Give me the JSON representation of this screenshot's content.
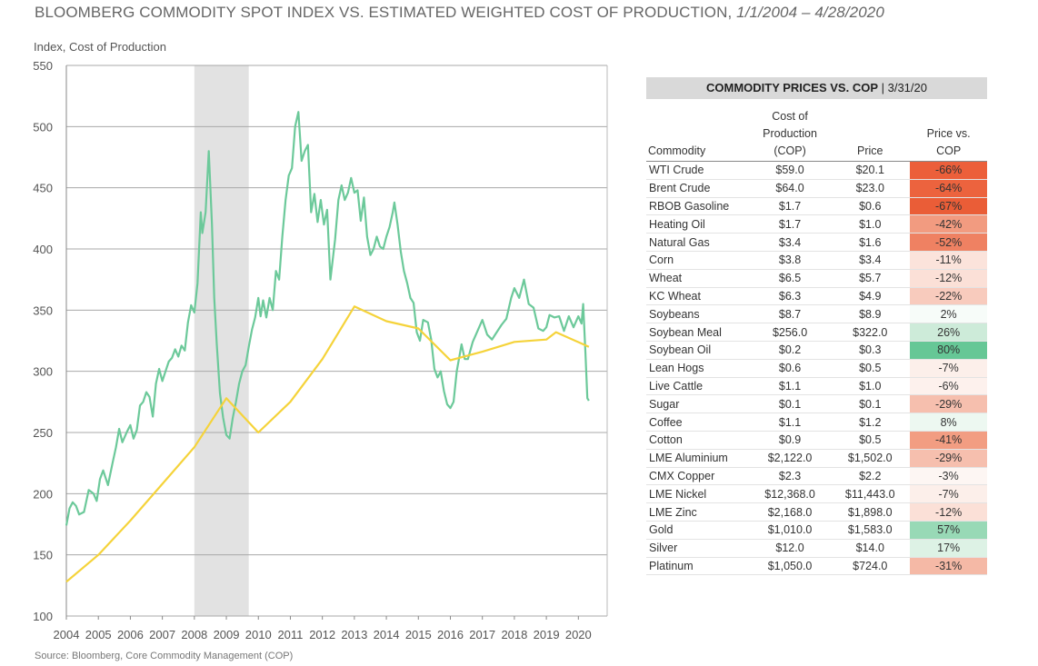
{
  "title": "BLOOMBERG COMMODITY SPOT INDEX VS. ESTIMATED WEIGHTED COST OF PRODUCTION,",
  "title_dates": "1/1/2004 – 4/28/2020",
  "source": "Source: Bloomberg, Core Commodity Management (COP)",
  "chart_data": {
    "type": "line",
    "ylabel": "Index, Cost of Production",
    "ylim": [
      100,
      550
    ],
    "xlim": [
      2004,
      2020.9
    ],
    "yticks": [
      100,
      150,
      200,
      250,
      300,
      350,
      400,
      450,
      500,
      550
    ],
    "xticks": [
      "2004",
      "2005",
      "2006",
      "2007",
      "2008",
      "2009",
      "2010",
      "2011",
      "2012",
      "2013",
      "2014",
      "2015",
      "2016",
      "2017",
      "2018",
      "2019",
      "2020"
    ],
    "grid": "horizontal",
    "shaded_region": [
      2008.0,
      2009.7
    ],
    "series": [
      {
        "color": "#6cc99a",
        "points": [
          [
            2004.0,
            174
          ],
          [
            2004.1,
            188
          ],
          [
            2004.2,
            193
          ],
          [
            2004.3,
            190
          ],
          [
            2004.4,
            183
          ],
          [
            2004.55,
            185
          ],
          [
            2004.7,
            203
          ],
          [
            2004.85,
            200
          ],
          [
            2004.95,
            194
          ],
          [
            2005.05,
            212
          ],
          [
            2005.15,
            219
          ],
          [
            2005.3,
            207
          ],
          [
            2005.45,
            226
          ],
          [
            2005.55,
            238
          ],
          [
            2005.65,
            253
          ],
          [
            2005.75,
            242
          ],
          [
            2005.9,
            251
          ],
          [
            2006.0,
            256
          ],
          [
            2006.1,
            245
          ],
          [
            2006.2,
            252
          ],
          [
            2006.3,
            272
          ],
          [
            2006.4,
            275
          ],
          [
            2006.5,
            283
          ],
          [
            2006.6,
            279
          ],
          [
            2006.7,
            263
          ],
          [
            2006.8,
            290
          ],
          [
            2006.9,
            302
          ],
          [
            2007.0,
            292
          ],
          [
            2007.1,
            300
          ],
          [
            2007.2,
            308
          ],
          [
            2007.3,
            311
          ],
          [
            2007.4,
            318
          ],
          [
            2007.5,
            312
          ],
          [
            2007.6,
            321
          ],
          [
            2007.7,
            317
          ],
          [
            2007.8,
            340
          ],
          [
            2007.9,
            354
          ],
          [
            2008.0,
            348
          ],
          [
            2008.1,
            372
          ],
          [
            2008.2,
            430
          ],
          [
            2008.25,
            413
          ],
          [
            2008.35,
            430
          ],
          [
            2008.45,
            480
          ],
          [
            2008.55,
            420
          ],
          [
            2008.62,
            360
          ],
          [
            2008.7,
            322
          ],
          [
            2008.8,
            282
          ],
          [
            2008.9,
            262
          ],
          [
            2009.0,
            248
          ],
          [
            2009.1,
            245
          ],
          [
            2009.2,
            262
          ],
          [
            2009.3,
            275
          ],
          [
            2009.4,
            290
          ],
          [
            2009.5,
            300
          ],
          [
            2009.6,
            305
          ],
          [
            2009.7,
            320
          ],
          [
            2009.8,
            334
          ],
          [
            2009.9,
            344
          ],
          [
            2010.0,
            360
          ],
          [
            2010.07,
            345
          ],
          [
            2010.15,
            358
          ],
          [
            2010.25,
            344
          ],
          [
            2010.35,
            360
          ],
          [
            2010.45,
            350
          ],
          [
            2010.55,
            382
          ],
          [
            2010.65,
            375
          ],
          [
            2010.75,
            410
          ],
          [
            2010.85,
            440
          ],
          [
            2010.95,
            460
          ],
          [
            2011.05,
            466
          ],
          [
            2011.15,
            500
          ],
          [
            2011.25,
            512
          ],
          [
            2011.35,
            472
          ],
          [
            2011.45,
            480
          ],
          [
            2011.55,
            485
          ],
          [
            2011.65,
            430
          ],
          [
            2011.75,
            445
          ],
          [
            2011.85,
            422
          ],
          [
            2011.95,
            440
          ],
          [
            2012.05,
            420
          ],
          [
            2012.15,
            432
          ],
          [
            2012.25,
            375
          ],
          [
            2012.4,
            408
          ],
          [
            2012.5,
            440
          ],
          [
            2012.6,
            452
          ],
          [
            2012.7,
            440
          ],
          [
            2012.8,
            446
          ],
          [
            2012.9,
            458
          ],
          [
            2013.0,
            446
          ],
          [
            2013.1,
            448
          ],
          [
            2013.2,
            423
          ],
          [
            2013.3,
            442
          ],
          [
            2013.4,
            410
          ],
          [
            2013.5,
            395
          ],
          [
            2013.6,
            400
          ],
          [
            2013.7,
            410
          ],
          [
            2013.8,
            402
          ],
          [
            2013.9,
            400
          ],
          [
            2014.0,
            410
          ],
          [
            2014.1,
            418
          ],
          [
            2014.2,
            430
          ],
          [
            2014.25,
            438
          ],
          [
            2014.35,
            420
          ],
          [
            2014.45,
            398
          ],
          [
            2014.55,
            382
          ],
          [
            2014.65,
            372
          ],
          [
            2014.75,
            360
          ],
          [
            2014.85,
            356
          ],
          [
            2014.95,
            332
          ],
          [
            2015.05,
            325
          ],
          [
            2015.15,
            342
          ],
          [
            2015.3,
            340
          ],
          [
            2015.4,
            326
          ],
          [
            2015.5,
            302
          ],
          [
            2015.6,
            295
          ],
          [
            2015.7,
            300
          ],
          [
            2015.8,
            284
          ],
          [
            2015.9,
            273
          ],
          [
            2016.0,
            270
          ],
          [
            2016.1,
            275
          ],
          [
            2016.2,
            300
          ],
          [
            2016.35,
            322
          ],
          [
            2016.45,
            310
          ],
          [
            2016.55,
            310
          ],
          [
            2016.7,
            324
          ],
          [
            2016.85,
            333
          ],
          [
            2017.0,
            342
          ],
          [
            2017.15,
            330
          ],
          [
            2017.3,
            326
          ],
          [
            2017.45,
            332
          ],
          [
            2017.6,
            338
          ],
          [
            2017.75,
            343
          ],
          [
            2017.9,
            360
          ],
          [
            2018.0,
            368
          ],
          [
            2018.15,
            360
          ],
          [
            2018.3,
            375
          ],
          [
            2018.45,
            355
          ],
          [
            2018.6,
            352
          ],
          [
            2018.75,
            335
          ],
          [
            2018.9,
            333
          ],
          [
            2019.0,
            336
          ],
          [
            2019.1,
            346
          ],
          [
            2019.25,
            344
          ],
          [
            2019.4,
            345
          ],
          [
            2019.55,
            333
          ],
          [
            2019.7,
            345
          ],
          [
            2019.85,
            336
          ],
          [
            2020.0,
            345
          ],
          [
            2020.1,
            339
          ],
          [
            2020.15,
            355
          ],
          [
            2020.22,
            315
          ],
          [
            2020.28,
            278
          ],
          [
            2020.33,
            276
          ]
        ]
      },
      {
        "color": "#f5d33a",
        "points": [
          [
            2004.0,
            128
          ],
          [
            2005.0,
            150
          ],
          [
            2006.0,
            178
          ],
          [
            2007.0,
            208
          ],
          [
            2008.0,
            238
          ],
          [
            2009.0,
            278
          ],
          [
            2010.0,
            250
          ],
          [
            2011.0,
            275
          ],
          [
            2012.0,
            310
          ],
          [
            2013.0,
            353
          ],
          [
            2014.0,
            341
          ],
          [
            2015.0,
            335
          ],
          [
            2016.0,
            309
          ],
          [
            2017.0,
            316
          ],
          [
            2018.0,
            324
          ],
          [
            2019.0,
            326
          ],
          [
            2019.3,
            332
          ],
          [
            2020.33,
            320
          ]
        ]
      }
    ]
  },
  "table": {
    "header_bold": "COMMODITY PRICES VS. COP",
    "header_date": "| 3/31/20",
    "columns": {
      "commodity": "Commodity",
      "cop": [
        "Cost of",
        "Production",
        "(COP)"
      ],
      "price": "Price",
      "pct": [
        "Price vs.",
        "COP"
      ]
    },
    "rows": [
      {
        "name": "WTI Crude",
        "cop": "$59.0",
        "price": "$20.1",
        "pct": "-66%",
        "color": "#ec5f3a"
      },
      {
        "name": "Brent Crude",
        "cop": "$64.0",
        "price": "$23.0",
        "pct": "-64%",
        "color": "#ec633e"
      },
      {
        "name": "RBOB Gasoline",
        "cop": "$1.7",
        "price": "$0.6",
        "pct": "-67%",
        "color": "#ea5d37"
      },
      {
        "name": "Heating Oil",
        "cop": "$1.7",
        "price": "$1.0",
        "pct": "-42%",
        "color": "#f29b80"
      },
      {
        "name": "Natural Gas",
        "cop": "$3.4",
        "price": "$1.6",
        "pct": "-52%",
        "color": "#ef8162"
      },
      {
        "name": "Corn",
        "cop": "$3.8",
        "price": "$3.4",
        "pct": "-11%",
        "color": "#fbe3db"
      },
      {
        "name": "Wheat",
        "cop": "$6.5",
        "price": "$5.7",
        "pct": "-12%",
        "color": "#fbe0d7"
      },
      {
        "name": "KC Wheat",
        "cop": "$6.3",
        "price": "$4.9",
        "pct": "-22%",
        "color": "#f8cbbd"
      },
      {
        "name": "Soybeans",
        "cop": "$8.7",
        "price": "$8.9",
        "pct": "2%",
        "color": "#f7fcf9"
      },
      {
        "name": "Soybean Meal",
        "cop": "$256.0",
        "price": "$322.0",
        "pct": "26%",
        "color": "#cdebd9"
      },
      {
        "name": "Soybean Oil",
        "cop": "$0.2",
        "price": "$0.3",
        "pct": "80%",
        "color": "#66c796"
      },
      {
        "name": "Lean Hogs",
        "cop": "$0.6",
        "price": "$0.5",
        "pct": "-7%",
        "color": "#fcefea"
      },
      {
        "name": "Live Cattle",
        "cop": "$1.1",
        "price": "$1.0",
        "pct": "-6%",
        "color": "#fdf1ed"
      },
      {
        "name": "Sugar",
        "cop": "$0.1",
        "price": "$0.1",
        "pct": "-29%",
        "color": "#f6bfae"
      },
      {
        "name": "Coffee",
        "cop": "$1.1",
        "price": "$1.2",
        "pct": "8%",
        "color": "#edf8f1"
      },
      {
        "name": "Cotton",
        "cop": "$0.9",
        "price": "$0.5",
        "pct": "-41%",
        "color": "#f29d82"
      },
      {
        "name": "LME Aluminium",
        "cop": "$2,122.0",
        "price": "$1,502.0",
        "pct": "-29%",
        "color": "#f6bfae"
      },
      {
        "name": "CMX Copper",
        "cop": "$2.3",
        "price": "$2.2",
        "pct": "-3%",
        "color": "#fdf6f3"
      },
      {
        "name": "LME Nickel",
        "cop": "$12,368.0",
        "price": "$11,443.0",
        "pct": "-7%",
        "color": "#fcefea"
      },
      {
        "name": "LME Zinc",
        "cop": "$2,168.0",
        "price": "$1,898.0",
        "pct": "-12%",
        "color": "#fbe0d7"
      },
      {
        "name": "Gold",
        "cop": "$1,010.0",
        "price": "$1,583.0",
        "pct": "57%",
        "color": "#98d9b6"
      },
      {
        "name": "Silver",
        "cop": "$12.0",
        "price": "$14.0",
        "pct": "17%",
        "color": "#ddf2e5"
      },
      {
        "name": "Platinum",
        "cop": "$1,050.0",
        "price": "$724.0",
        "pct": "-31%",
        "color": "#f5b9a6"
      }
    ]
  }
}
